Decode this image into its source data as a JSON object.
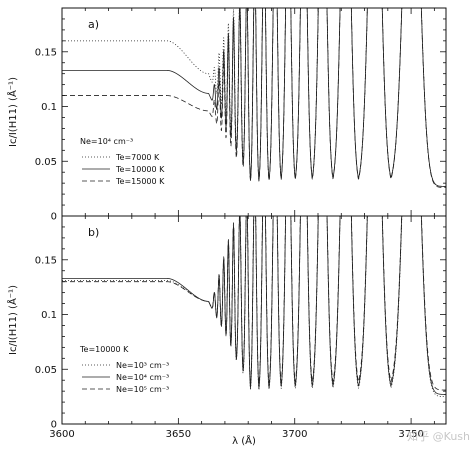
{
  "watermark": "知乎 @Kush",
  "chart_data": [
    {
      "type": "line",
      "panel_label": "a)",
      "xlabel": "λ (Å)",
      "ylabel": "Ic/I(H11) (Å⁻¹)",
      "xlim": [
        3600,
        3765
      ],
      "ylim": [
        0,
        0.19
      ],
      "xticks": [
        3600,
        3650,
        3700,
        3750
      ],
      "yticks": [
        0,
        0.05,
        0.1,
        0.15
      ],
      "ytick_labels": [
        "0",
        "0.05",
        "0.1",
        "0.15"
      ],
      "xtick_labels_shown": false,
      "condition": "Ne=10⁴ cm⁻³",
      "legend_position": "left-center",
      "line_peaks_at": [
        3665.5,
        3667.5,
        3669.5,
        3671.5,
        3673.7,
        3676.4,
        3679.4,
        3682.8,
        3686.8,
        3691.6,
        3697.2,
        3703.9,
        3712.0,
        3721.9,
        3734.4,
        3750.2
      ],
      "series": [
        {
          "name": "Te=7000 K",
          "dash": "dotted",
          "continuum_level": 0.16,
          "jump_level": 0.13,
          "baseline_min": 0.027
        },
        {
          "name": "Te=10000 K",
          "dash": "solid",
          "continuum_level": 0.133,
          "jump_level": 0.112,
          "baseline_min": 0.027
        },
        {
          "name": "Te=15000 K",
          "dash": "dashed",
          "continuum_level": 0.11,
          "jump_level": 0.096,
          "baseline_min": 0.026
        }
      ]
    },
    {
      "type": "line",
      "panel_label": "b)",
      "xlabel": "λ (Å)",
      "ylabel": "Ic/I(H11) (Å⁻¹)",
      "xlim": [
        3600,
        3765
      ],
      "ylim": [
        0,
        0.19
      ],
      "xticks": [
        3600,
        3650,
        3700,
        3750
      ],
      "xtick_labels": [
        "3600",
        "3650",
        "3700",
        "3750"
      ],
      "yticks": [
        0,
        0.05,
        0.1,
        0.15
      ],
      "ytick_labels": [
        "0",
        "0.05",
        "0.1",
        "0.15"
      ],
      "xtick_labels_shown": true,
      "condition": "Te=10000 K",
      "legend_position": "left-center",
      "line_peaks_at": [
        3665.5,
        3667.5,
        3669.5,
        3671.5,
        3673.7,
        3676.4,
        3679.4,
        3682.8,
        3686.8,
        3691.6,
        3697.2,
        3703.9,
        3712.0,
        3721.9,
        3734.4,
        3750.2
      ],
      "series": [
        {
          "name": "Ne=10³ cm⁻³",
          "dash": "dotted",
          "continuum_level": 0.131,
          "jump_level": 0.112,
          "baseline_min": 0.025
        },
        {
          "name": "Ne=10⁴ cm⁻³",
          "dash": "solid",
          "continuum_level": 0.133,
          "jump_level": 0.112,
          "baseline_min": 0.027
        },
        {
          "name": "Ne=10⁵ cm⁻³",
          "dash": "dashed",
          "continuum_level": 0.13,
          "jump_level": 0.112,
          "baseline_min": 0.031
        }
      ]
    }
  ]
}
